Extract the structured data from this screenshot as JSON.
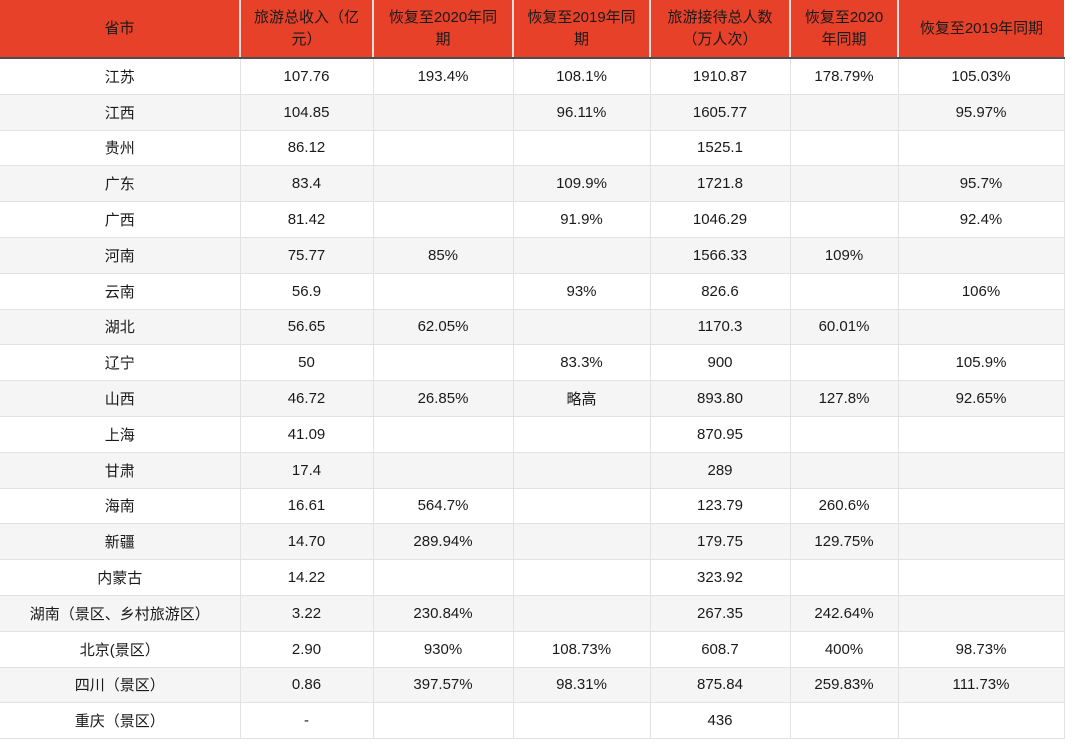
{
  "colors": {
    "header_bg": "#e8412a",
    "header_text": "#1a1a1a",
    "header_divider": "#f7ddd7",
    "header_bottom_border": "#4e4e4e",
    "stripe_bg": "#f5f5f5",
    "border": "#e2e2e2",
    "text": "#1a1a1a"
  },
  "chart_data": {
    "type": "table",
    "title": "",
    "columns": [
      "省市",
      "旅游总收入（亿元）",
      "恢复至2020年同期",
      "恢复至2019年同期",
      "旅游接待总人数（万人次）",
      "恢复至2020年同期",
      "恢复至2019年同期"
    ],
    "rows": [
      [
        "江苏",
        "107.76",
        "193.4%",
        "108.1%",
        "1910.87",
        "178.79%",
        "105.03%"
      ],
      [
        "江西",
        "104.85",
        "",
        "96.11%",
        "1605.77",
        "",
        "95.97%"
      ],
      [
        "贵州",
        "86.12",
        "",
        "",
        "1525.1",
        "",
        ""
      ],
      [
        "广东",
        "83.4",
        "",
        "109.9%",
        "1721.8",
        "",
        "95.7%"
      ],
      [
        "广西",
        "81.42",
        "",
        "91.9%",
        "1046.29",
        "",
        "92.4%"
      ],
      [
        "河南",
        "75.77",
        "85%",
        "",
        "1566.33",
        "109%",
        ""
      ],
      [
        "云南",
        "56.9",
        "",
        "93%",
        "826.6",
        "",
        "106%"
      ],
      [
        "湖北",
        "56.65",
        "62.05%",
        "",
        "1170.3",
        "60.01%",
        ""
      ],
      [
        "辽宁",
        "50",
        "",
        "83.3%",
        "900",
        "",
        "105.9%"
      ],
      [
        "山西",
        "46.72",
        "26.85%",
        "略高",
        "893.80",
        "127.8%",
        "92.65%"
      ],
      [
        "上海",
        "41.09",
        "",
        "",
        "870.95",
        "",
        ""
      ],
      [
        "甘肃",
        "17.4",
        "",
        "",
        "289",
        "",
        ""
      ],
      [
        "海南",
        "16.61",
        "564.7%",
        "",
        "123.79",
        "260.6%",
        ""
      ],
      [
        "新疆",
        "14.70",
        "289.94%",
        "",
        "179.75",
        "129.75%",
        ""
      ],
      [
        "内蒙古",
        "14.22",
        "",
        "",
        "323.92",
        "",
        ""
      ],
      [
        "湖南（景区、乡村旅游区）",
        "3.22",
        "230.84%",
        "",
        "267.35",
        "242.64%",
        ""
      ],
      [
        "北京(景区）",
        "2.90",
        "930%",
        "108.73%",
        "608.7",
        "400%",
        "98.73%"
      ],
      [
        "四川（景区）",
        "0.86",
        "397.57%",
        "98.31%",
        "875.84",
        "259.83%",
        "111.73%"
      ],
      [
        "重庆（景区）",
        "-",
        "",
        "",
        "436",
        "",
        ""
      ]
    ]
  }
}
